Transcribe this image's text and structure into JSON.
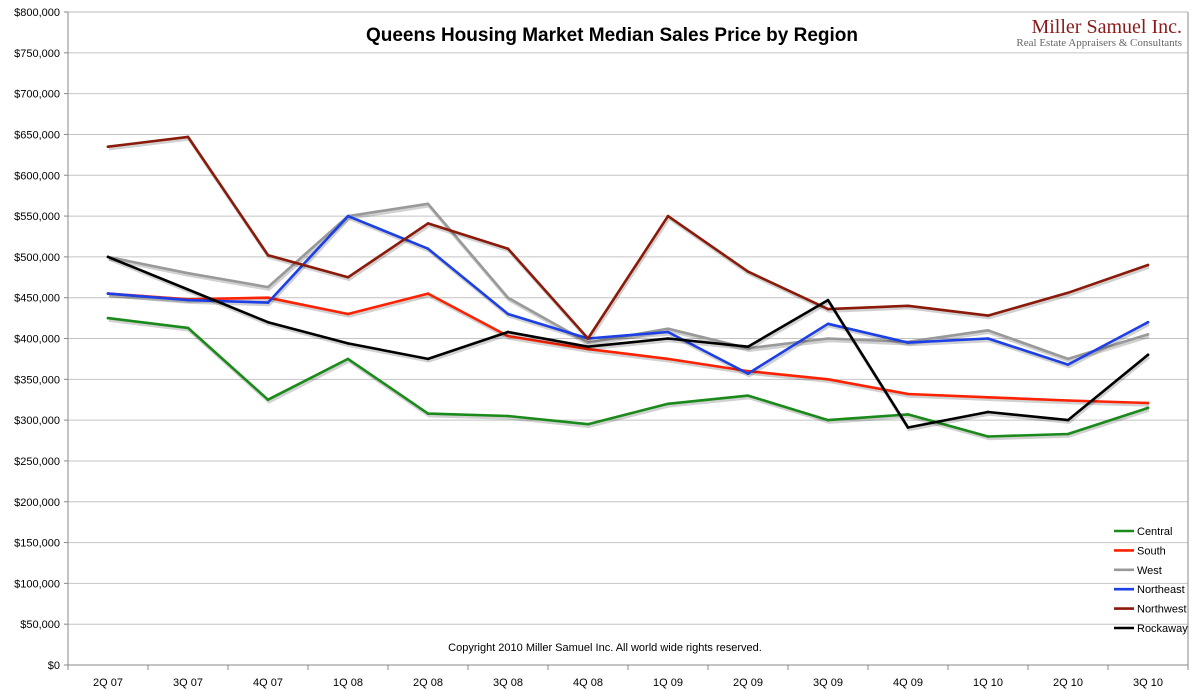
{
  "chart_data": {
    "type": "line",
    "title": "Queens Housing Market Median Sales Price by Region",
    "xlabel": "",
    "ylabel": "",
    "ylim": [
      0,
      800000
    ],
    "yticks": [
      0,
      50000,
      100000,
      150000,
      200000,
      250000,
      300000,
      350000,
      400000,
      450000,
      500000,
      550000,
      600000,
      650000,
      700000,
      750000,
      800000
    ],
    "ytick_labels": [
      "$0",
      "$50,000",
      "$100,000",
      "$150,000",
      "$200,000",
      "$250,000",
      "$300,000",
      "$350,000",
      "$400,000",
      "$450,000",
      "$500,000",
      "$550,000",
      "$600,000",
      "$650,000",
      "$700,000",
      "$750,000",
      "$800,000"
    ],
    "categories": [
      "2Q 07",
      "3Q 07",
      "4Q 07",
      "1Q 08",
      "2Q 08",
      "3Q 08",
      "4Q 08",
      "1Q 09",
      "2Q 09",
      "3Q 09",
      "4Q 09",
      "1Q 10",
      "2Q 10",
      "3Q 10"
    ],
    "grid": true,
    "legend_position": "bottom-right",
    "series": [
      {
        "name": "Central",
        "color": "#1a8a1a",
        "values": [
          425000,
          413000,
          325000,
          375000,
          308000,
          305000,
          295000,
          320000,
          330000,
          300000,
          307000,
          280000,
          283000,
          315000
        ]
      },
      {
        "name": "South",
        "color": "#ff2200",
        "values": [
          455000,
          448000,
          450000,
          430000,
          455000,
          403000,
          387000,
          375000,
          360000,
          350000,
          332000,
          328000,
          324000,
          321000
        ]
      },
      {
        "name": "West",
        "color": "#999999",
        "values": [
          500000,
          480000,
          463000,
          550000,
          565000,
          450000,
          395000,
          412000,
          388000,
          400000,
          396000,
          410000,
          375000,
          405000
        ]
      },
      {
        "name": "Northeast",
        "color": "#1c3fe6",
        "values": [
          455000,
          447000,
          444000,
          550000,
          510000,
          430000,
          400000,
          408000,
          357000,
          418000,
          395000,
          400000,
          368000,
          420000
        ]
      },
      {
        "name": "Northwest",
        "color": "#8b1a0a",
        "values": [
          635000,
          647000,
          502000,
          475000,
          541000,
          510000,
          400000,
          550000,
          482000,
          436000,
          440000,
          428000,
          456000,
          490000
        ]
      },
      {
        "name": "Rockaway",
        "color": "#000000",
        "values": [
          500000,
          460000,
          420000,
          394000,
          375000,
          408000,
          390000,
          400000,
          390000,
          447000,
          291000,
          310000,
          300000,
          380000
        ]
      }
    ]
  },
  "copyright": "Copyright 2010 Miller Samuel Inc.  All world wide rights reserved.",
  "logo": {
    "name": "Miller Samuel Inc.",
    "tagline": "Real Estate Appraisers & Consultants"
  }
}
